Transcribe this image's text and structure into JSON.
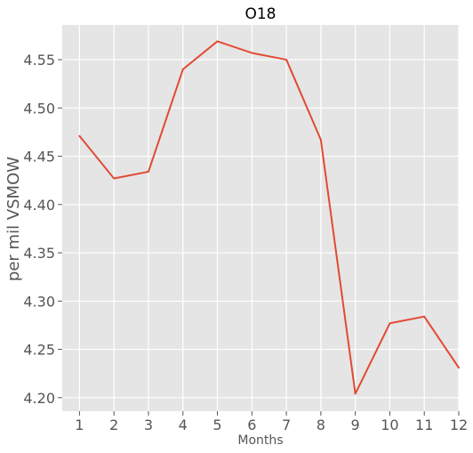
{
  "chart_data": {
    "type": "line",
    "title": "O18",
    "xlabel": "Months",
    "ylabel": "per mil VSMOW",
    "x": [
      1,
      2,
      3,
      4,
      5,
      6,
      7,
      8,
      9,
      10,
      11,
      12
    ],
    "series": [
      {
        "values": [
          4.471,
          4.427,
          4.434,
          4.54,
          4.569,
          4.557,
          4.55,
          4.467,
          4.204,
          4.277,
          4.284,
          4.231
        ]
      }
    ],
    "xticks": [
      "1",
      "2",
      "3",
      "4",
      "5",
      "6",
      "7",
      "8",
      "9",
      "10",
      "11",
      "12"
    ],
    "yticks": [
      "4.20",
      "4.25",
      "4.30",
      "4.35",
      "4.40",
      "4.45",
      "4.50",
      "4.55"
    ],
    "xlim": [
      0.5,
      12
    ],
    "ylim": [
      4.186,
      4.586
    ],
    "grid": true,
    "colors": {
      "line": "#e24a33",
      "background": "#e5e5e5",
      "grid": "#ffffff"
    }
  }
}
